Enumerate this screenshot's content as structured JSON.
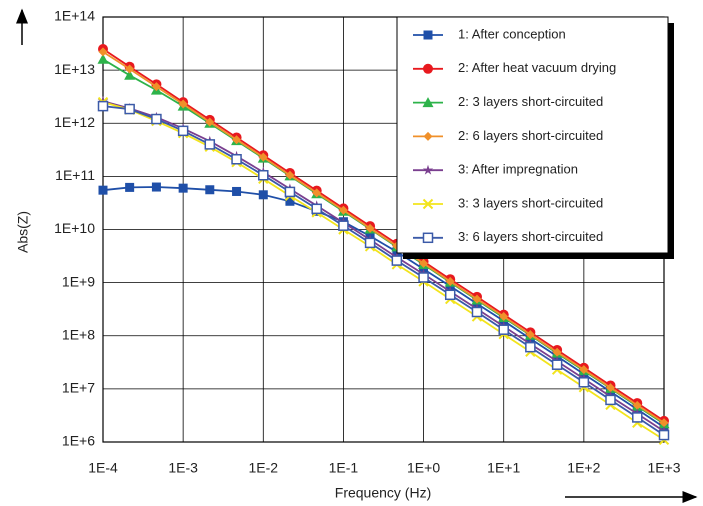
{
  "chart_data": {
    "type": "line",
    "x_label": "Frequency (Hz)",
    "y_label": "Abs(Z)",
    "log_x": true,
    "log_y": true,
    "grid": true,
    "legend": "upper right",
    "x": [
      0.0001,
      0.000215,
      0.000464,
      0.001,
      0.00215,
      0.00464,
      0.01,
      0.0215,
      0.0464,
      0.1,
      0.215,
      0.464,
      1,
      2.15,
      4.64,
      10,
      21.5,
      46.4,
      100,
      215,
      464,
      1000
    ],
    "xlim": [
      0.0001,
      1000
    ],
    "xticks": [
      {
        "value": 0.0001,
        "label": "1E-4"
      },
      {
        "value": 0.001,
        "label": "1E-3"
      },
      {
        "value": 0.01,
        "label": "1E-2"
      },
      {
        "value": 0.1,
        "label": "1E-1"
      },
      {
        "value": 1,
        "label": "1E+0"
      },
      {
        "value": 10,
        "label": "1E+1"
      },
      {
        "value": 100,
        "label": "1E+2"
      },
      {
        "value": 1000,
        "label": "1E+3"
      }
    ],
    "ylim": [
      1000000.0,
      100000000000000.0
    ],
    "yticks": [
      {
        "value": 1000000.0,
        "label": "1E+6"
      },
      {
        "value": 10000000.0,
        "label": "1E+7"
      },
      {
        "value": 100000000.0,
        "label": "1E+8"
      },
      {
        "value": 1000000000.0,
        "label": "1E+9"
      },
      {
        "value": 10000000000.0,
        "label": "1E+10"
      },
      {
        "value": 100000000000.0,
        "label": "1E+11"
      },
      {
        "value": 1000000000000.0,
        "label": "1E+12"
      },
      {
        "value": 10000000000000.0,
        "label": "1E+13"
      },
      {
        "value": 100000000000000.0,
        "label": "1E+14"
      }
    ],
    "series": [
      {
        "name": "1: After conception",
        "color": "#1f4fa8",
        "marker": "square",
        "values": [
          55000000000.0,
          62000000000.0,
          63000000000.0,
          60000000000.0,
          56000000000.0,
          52000000000.0,
          45000000000.0,
          34000000000.0,
          22000000000.0,
          14000000000.0,
          7500000000.0,
          3800000000.0,
          1800000000.0,
          860000000.0,
          400000000.0,
          190000000.0,
          88000000.0,
          41000000.0,
          19000000.0,
          8900000.0,
          4100000.0,
          1900000.0
        ]
      },
      {
        "name": "2: After heat vacuum drying",
        "color": "#e8191e",
        "marker": "circle",
        "values": [
          25000000000000.0,
          11600000000000.0,
          5400000000000.0,
          2500000000000.0,
          1160000000000.0,
          540000000000.0,
          250000000000.0,
          116000000000.0,
          54000000000.0,
          25000000000.0,
          11600000000.0,
          5400000000.0,
          2500000000.0,
          1160000000.0,
          540000000.0,
          250000000.0,
          116000000.0,
          54000000.0,
          25000000.0,
          11600000.0,
          5400000.0,
          2500000.0
        ]
      },
      {
        "name": "2: 3 layers short-circuited",
        "color": "#2db34a",
        "marker": "triangle",
        "values": [
          16000000000000.0,
          8000000000000.0,
          4200000000000.0,
          2100000000000.0,
          1000000000000.0,
          470000000000.0,
          220000000000.0,
          102000000000.0,
          47000000000.0,
          22000000000.0,
          10200000000.0,
          4700000000.0,
          2200000000.0,
          1020000000.0,
          470000000.0,
          220000000.0,
          102000000.0,
          47000000.0,
          22000000.0,
          10200000.0,
          4700000.0,
          2200000.0
        ]
      },
      {
        "name": "2: 6 layers short-circuited",
        "color": "#f0902a",
        "marker": "diamond",
        "values": [
          22000000000000.0,
          10500000000000.0,
          4900000000000.0,
          2300000000000.0,
          1050000000000.0,
          490000000000.0,
          230000000000.0,
          105000000000.0,
          49000000000.0,
          23000000000.0,
          10500000000.0,
          4900000000.0,
          2300000000.0,
          1050000000.0,
          490000000.0,
          230000000.0,
          105000000.0,
          49000000.0,
          23000000.0,
          10500000.0,
          4900000.0,
          2300000.0
        ]
      },
      {
        "name": "3: After impregnation",
        "color": "#7a3f8f",
        "marker": "star",
        "values": [
          2600000000000.0,
          1900000000000.0,
          1300000000000.0,
          800000000000.0,
          460000000000.0,
          240000000000.0,
          120000000000.0,
          58000000000.0,
          28000000000.0,
          13500000000.0,
          6400000000.0,
          3000000000.0,
          1450000000.0,
          680000000.0,
          320000000.0,
          150000000.0,
          70000000.0,
          33000000.0,
          15500000.0,
          7200000.0,
          3400000.0,
          1600000.0
        ]
      },
      {
        "name": "3: 3 layers short-circuited",
        "color": "#f2e41c",
        "marker": "cross",
        "values": [
          2500000000000.0,
          1800000000000.0,
          1100000000000.0,
          650000000000.0,
          360000000000.0,
          185000000000.0,
          90000000000.0,
          43000000000.0,
          21000000000.0,
          10000000000.0,
          4800000000.0,
          2200000000.0,
          1050000000.0,
          490000000.0,
          230000000.0,
          107000000.0,
          50000000.0,
          23000000.0,
          10700000.0,
          5000000.0,
          2300000.0,
          1100000.0
        ]
      },
      {
        "name": "3: 6 layers short-circuited",
        "color": "#3b5aa8",
        "marker": "open-square",
        "values": [
          2100000000000.0,
          1850000000000.0,
          1200000000000.0,
          720000000000.0,
          400000000000.0,
          210000000000.0,
          105000000000.0,
          51000000000.0,
          24500000000.0,
          11800000000.0,
          5600000000.0,
          2600000000.0,
          1250000000.0,
          590000000.0,
          280000000.0,
          130000000.0,
          61000000.0,
          28500000.0,
          13300000.0,
          6200000.0,
          2900000.0,
          1350000.0
        ]
      }
    ]
  }
}
